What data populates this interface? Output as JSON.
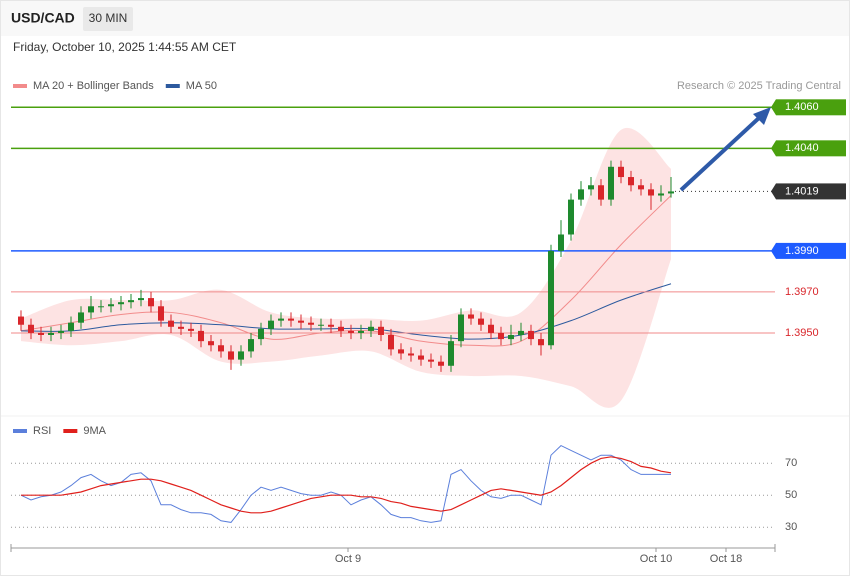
{
  "header": {
    "symbol": "USD/CAD",
    "interval": "30 MIN",
    "date": "Friday, October 10, 2025 1:44:55 AM CET",
    "credit": "Research © 2025 Trading Central"
  },
  "chart_data": [
    {
      "type": "candlestick",
      "up_color": "#1e8a2e",
      "down_color": "#d9262b",
      "open": [
        1.3958,
        1.3954,
        1.395,
        1.3949,
        1.395,
        1.3951,
        1.3955,
        1.396,
        1.3963,
        1.3963,
        1.3964,
        1.3965,
        1.3966,
        1.3967,
        1.3963,
        1.3956,
        1.3953,
        1.3952,
        1.3951,
        1.3946,
        1.3944,
        1.3941,
        1.3937,
        1.3941,
        1.3947,
        1.3952,
        1.3956,
        1.3957,
        1.3956,
        1.3955,
        1.3954,
        1.3954,
        1.3953,
        1.3951,
        1.395,
        1.3951,
        1.3953,
        1.3949,
        1.3942,
        1.394,
        1.3939,
        1.3937,
        1.3936,
        1.3934,
        1.3946,
        1.3959,
        1.3957,
        1.3954,
        1.395,
        1.3947,
        1.3949,
        1.3951,
        1.3947,
        1.3944,
        1.399,
        1.3998,
        1.4015,
        1.402,
        1.4022,
        1.4015,
        1.4031,
        1.4026,
        1.4022,
        1.402,
        1.4017,
        1.4018
      ],
      "high": [
        1.3961,
        1.3957,
        1.3953,
        1.3953,
        1.3954,
        1.3958,
        1.3963,
        1.3968,
        1.3966,
        1.3967,
        1.3968,
        1.3969,
        1.3971,
        1.397,
        1.3966,
        1.3959,
        1.3956,
        1.3955,
        1.3954,
        1.3949,
        1.3947,
        1.3944,
        1.3944,
        1.395,
        1.3955,
        1.3959,
        1.396,
        1.396,
        1.3959,
        1.3958,
        1.3957,
        1.3957,
        1.3956,
        1.3954,
        1.3954,
        1.3956,
        1.3956,
        1.3952,
        1.3945,
        1.3943,
        1.3942,
        1.394,
        1.3939,
        1.3949,
        1.3962,
        1.3962,
        1.396,
        1.3957,
        1.3953,
        1.3954,
        1.3955,
        1.3954,
        1.395,
        1.3993,
        1.4005,
        1.4018,
        1.4024,
        1.4026,
        1.4025,
        1.4034,
        1.4034,
        1.4029,
        1.4025,
        1.4023,
        1.4022,
        1.4026
      ],
      "low": [
        1.3951,
        1.3947,
        1.3946,
        1.3946,
        1.3947,
        1.3948,
        1.3952,
        1.3957,
        1.396,
        1.396,
        1.3961,
        1.3962,
        1.3963,
        1.396,
        1.3953,
        1.395,
        1.3949,
        1.3948,
        1.3943,
        1.3941,
        1.3938,
        1.3932,
        1.3934,
        1.3938,
        1.3944,
        1.3949,
        1.3953,
        1.3953,
        1.3952,
        1.3951,
        1.3951,
        1.395,
        1.3948,
        1.3947,
        1.3947,
        1.3948,
        1.3946,
        1.3939,
        1.3937,
        1.3936,
        1.3934,
        1.3933,
        1.3931,
        1.3931,
        1.3943,
        1.3954,
        1.3951,
        1.3947,
        1.3944,
        1.3944,
        1.3946,
        1.3944,
        1.3939,
        1.3942,
        1.3987,
        1.3995,
        1.4012,
        1.4017,
        1.4012,
        1.4012,
        1.4023,
        1.4019,
        1.4017,
        1.401,
        1.4014,
        1.4016
      ],
      "close": [
        1.3954,
        1.395,
        1.3949,
        1.395,
        1.3951,
        1.3955,
        1.396,
        1.3963,
        1.3963,
        1.3964,
        1.3965,
        1.3966,
        1.3967,
        1.3963,
        1.3956,
        1.3953,
        1.3952,
        1.3951,
        1.3946,
        1.3944,
        1.3941,
        1.3937,
        1.3941,
        1.3947,
        1.3952,
        1.3956,
        1.3957,
        1.3956,
        1.3955,
        1.3954,
        1.3954,
        1.3953,
        1.3951,
        1.395,
        1.3951,
        1.3953,
        1.3949,
        1.3942,
        1.394,
        1.3939,
        1.3937,
        1.3936,
        1.3934,
        1.3946,
        1.3959,
        1.3957,
        1.3954,
        1.395,
        1.3947,
        1.3949,
        1.3951,
        1.3947,
        1.3944,
        1.399,
        1.3998,
        1.4015,
        1.402,
        1.4022,
        1.4015,
        1.4031,
        1.4026,
        1.4022,
        1.402,
        1.4017,
        1.4018,
        1.4019
      ],
      "overlay_x": [
        0,
        5,
        10,
        15,
        20,
        25,
        30,
        35,
        40,
        45,
        50,
        55,
        60,
        65
      ],
      "series": [
        {
          "name": "MA 20 + Bollinger Bands",
          "color": "#f28b8b",
          "band_color": "#fde3e3",
          "values": [
            1.3951,
            1.3955,
            1.3959,
            1.396,
            1.3955,
            1.3947,
            1.395,
            1.3951,
            1.3946,
            1.3944,
            1.3946,
            1.3966,
            1.3993,
            1.4017
          ],
          "upper": [
            1.3957,
            1.3966,
            1.3966,
            1.3966,
            1.3971,
            1.396,
            1.3957,
            1.3957,
            1.3956,
            1.3961,
            1.396,
            1.3995,
            1.4049,
            1.403
          ],
          "lower": [
            1.3946,
            1.3944,
            1.3946,
            1.3949,
            1.3936,
            1.3936,
            1.3939,
            1.3941,
            1.3931,
            1.3929,
            1.3929,
            1.3924,
            1.3917,
            1.3986
          ]
        },
        {
          "name": "MA 50",
          "color": "#2d5a9e",
          "values": [
            1.3951,
            1.3951,
            1.3954,
            1.3955,
            1.3954,
            1.3952,
            1.3952,
            1.3952,
            1.3949,
            1.3947,
            1.3949,
            1.3956,
            1.3966,
            1.3974
          ]
        }
      ],
      "levels": [
        {
          "value": 1.406,
          "label": "1.4060",
          "color": "#4aa00e",
          "box": true
        },
        {
          "value": 1.404,
          "label": "1.4040",
          "color": "#4aa00e",
          "box": true
        },
        {
          "value": 1.399,
          "label": "1.3990",
          "color": "#1e5bff",
          "box": true
        },
        {
          "value": 1.397,
          "label": "1.3970",
          "color": "#f08a8a",
          "text_color": "#d9262b",
          "box": false
        },
        {
          "value": 1.395,
          "label": "1.3950",
          "color": "#f08a8a",
          "text_color": "#d9262b",
          "box": false
        }
      ],
      "last": {
        "value": 1.4019,
        "color": "#333333"
      },
      "xlim": [
        -1,
        75.4
      ],
      "ylim": [
        1.391,
        1.4066
      ]
    },
    {
      "type": "line",
      "series": [
        {
          "name": "RSI",
          "color": "#5b7fdb",
          "values": [
            50,
            47,
            49,
            50,
            52,
            56,
            61,
            63,
            59,
            56,
            58,
            63,
            64,
            59,
            44,
            44,
            41,
            39,
            39,
            38,
            34,
            33,
            41,
            50,
            55,
            53,
            55,
            53,
            51,
            50,
            50,
            52,
            50,
            44,
            47,
            49,
            44,
            38,
            36,
            36,
            34,
            33,
            34,
            63,
            66,
            59,
            53,
            49,
            48,
            50,
            50,
            47,
            44,
            75,
            81,
            78,
            75,
            72,
            75,
            75,
            72,
            66,
            63,
            63,
            63,
            63
          ]
        },
        {
          "name": "9MA",
          "color": "#e0201c",
          "values": [
            50,
            50,
            50,
            50,
            50,
            51,
            52,
            54,
            56,
            57,
            58,
            59,
            60,
            60,
            59,
            57,
            55,
            53,
            50,
            47,
            44,
            42,
            40,
            39,
            39,
            40,
            42,
            44,
            46,
            48,
            49,
            50,
            50,
            50,
            49,
            49,
            48,
            46,
            45,
            43,
            42,
            41,
            40,
            41,
            44,
            47,
            50,
            53,
            54,
            53,
            52,
            51,
            50,
            52,
            56,
            61,
            66,
            70,
            73,
            74,
            73,
            71,
            68,
            67,
            65,
            64
          ]
        }
      ],
      "xlim": [
        -1,
        75.4
      ],
      "ylim": [
        22,
        84.5
      ],
      "yticks": [
        30,
        50,
        70
      ],
      "grid": true,
      "xticks": [
        {
          "value": 32.7,
          "label": "Oct 9"
        },
        {
          "value": 63.5,
          "label": "Oct 10"
        },
        {
          "value": 70.5,
          "label": "Oct 18"
        }
      ]
    }
  ]
}
